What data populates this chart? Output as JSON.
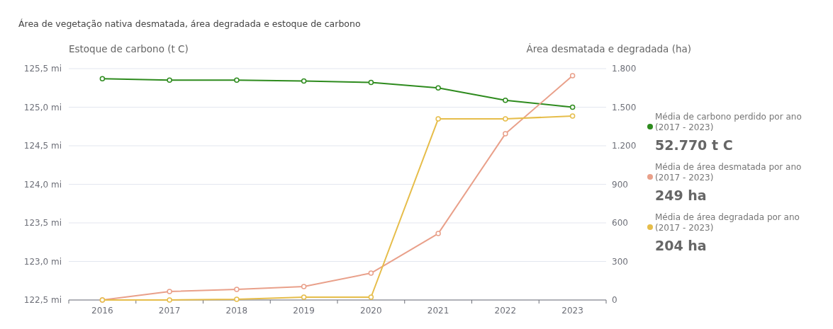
{
  "chart_data": {
    "type": "line",
    "title": "Área de vegetação nativa desmatada, área degradada e estoque de carbono",
    "ylabel": "Estoque de carbono (t C)",
    "y2label": "Área desmatada e degradada (ha)",
    "categories": [
      "2016",
      "2017",
      "2018",
      "2019",
      "2020",
      "2021",
      "2022",
      "2023"
    ],
    "series": [
      {
        "name": "Média de carbono perdido por ano (2017 - 2023)",
        "color": "#2e8b1e",
        "values": [
          125.37,
          125.35,
          125.35,
          125.34,
          125.32,
          125.25,
          125.09,
          125.0
        ]
      },
      {
        "name": "Média de área desmatada por ano (2017 - 2023)",
        "color": "#e9a08a",
        "axis": "y2",
        "values": [
          0,
          66,
          83,
          105,
          209,
          517,
          1293,
          1745
        ]
      },
      {
        "name": "Média de área degradada por ano (2017 - 2023)",
        "color": "#e6bd4a",
        "axis": "y2",
        "values": [
          0,
          0,
          5,
          22,
          22,
          1409,
          1409,
          1431
        ]
      }
    ],
    "annotations": [
      "52.770 t C",
      "249 ha",
      "204 ha"
    ],
    "ylim": [
      122.5,
      125.5
    ],
    "yticks": [
      {
        "value": 122.5,
        "label": "122,5 mi"
      },
      {
        "value": 123,
        "label": "123,0 mi"
      },
      {
        "value": 123.5,
        "label": "123,5 mi"
      },
      {
        "value": 124,
        "label": "124,0 mi"
      },
      {
        "value": 124.5,
        "label": "124,5 mi"
      },
      {
        "value": 125,
        "label": "125,0 mi"
      },
      {
        "value": 125.5,
        "label": "125,5 mi"
      }
    ],
    "y2lim": [
      0,
      1800
    ],
    "y2ticks": [
      0,
      300,
      600,
      900,
      {
        "value": 1200,
        "label": "1.200"
      },
      {
        "value": 1500,
        "label": "1.500"
      },
      {
        "value": 1800,
        "label": "1.800"
      }
    ],
    "grid": "y",
    "legend": "right",
    "marker": "circle",
    "line_style": "solid"
  }
}
